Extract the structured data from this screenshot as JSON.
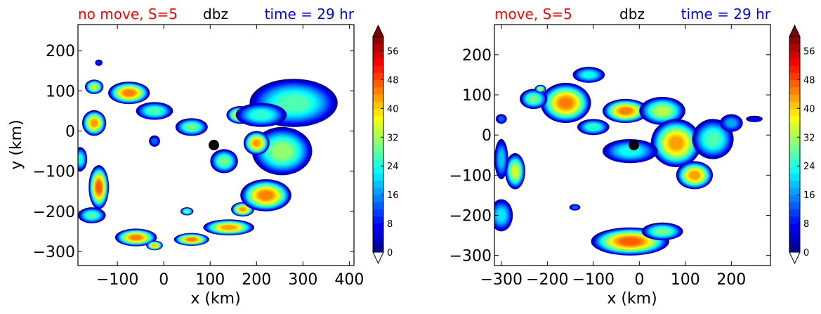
{
  "figure": {
    "panels": [
      {
        "title_left": "no move, S=5",
        "title_mid": "dbz",
        "title_right": "time = 29 hr",
        "xlabel": "x (km)",
        "ylabel": "y (km)"
      },
      {
        "title_left": "move, S=5",
        "title_mid": "dbz",
        "title_right": "time = 29 hr",
        "xlabel": "x (km)",
        "ylabel": ""
      }
    ],
    "colors": {
      "title_left": "#ff0000",
      "title_mid": "#000000",
      "title_right": "#0000ff",
      "center_marker": "#000000"
    }
  },
  "chart_data": [
    {
      "type": "heatmap",
      "title": "no move, S=5   dbz   time = 29 hr",
      "xlabel": "x (km)",
      "ylabel": "y (km)",
      "xlim": [
        -185,
        410
      ],
      "ylim": [
        -335,
        265
      ],
      "xticks": [
        -100,
        0,
        100,
        200,
        300,
        400
      ],
      "xtick_labels": [
        "−100",
        "0",
        "100",
        "200",
        "300",
        "400"
      ],
      "yticks": [
        -300,
        -200,
        -100,
        0,
        100,
        200
      ],
      "ytick_labels": [
        "−300",
        "−200",
        "−100",
        "0",
        "100",
        "200"
      ],
      "center_marker": {
        "x": 108,
        "y": -35
      },
      "colorbar": {
        "label": "dbz",
        "min": 0,
        "max": 60,
        "step": 2,
        "extend": "both",
        "ticks": [
          0,
          8,
          16,
          24,
          32,
          40,
          48,
          56
        ],
        "tick_labels": [
          "0",
          "8",
          "16",
          "24",
          "32",
          "40",
          "48",
          "56"
        ]
      },
      "blobs": [
        {
          "x": -150,
          "y": 20,
          "rx": 26,
          "ry": 32,
          "peak": 44
        },
        {
          "x": -75,
          "y": 95,
          "rx": 45,
          "ry": 28,
          "peak": 46
        },
        {
          "x": -150,
          "y": 110,
          "rx": 20,
          "ry": 18,
          "peak": 36
        },
        {
          "x": -20,
          "y": 50,
          "rx": 40,
          "ry": 22,
          "peak": 28
        },
        {
          "x": 60,
          "y": 10,
          "rx": 35,
          "ry": 22,
          "peak": 30
        },
        {
          "x": -140,
          "y": -140,
          "rx": 22,
          "ry": 55,
          "peak": 48
        },
        {
          "x": -180,
          "y": -70,
          "rx": 15,
          "ry": 30,
          "peak": 24
        },
        {
          "x": -155,
          "y": -210,
          "rx": 30,
          "ry": 20,
          "peak": 28
        },
        {
          "x": -60,
          "y": -265,
          "rx": 45,
          "ry": 22,
          "peak": 46
        },
        {
          "x": -20,
          "y": -285,
          "rx": 18,
          "ry": 12,
          "peak": 42
        },
        {
          "x": 60,
          "y": -270,
          "rx": 38,
          "ry": 16,
          "peak": 46
        },
        {
          "x": 140,
          "y": -240,
          "rx": 55,
          "ry": 20,
          "peak": 44
        },
        {
          "x": 170,
          "y": -195,
          "rx": 25,
          "ry": 18,
          "peak": 44
        },
        {
          "x": 220,
          "y": -160,
          "rx": 55,
          "ry": 40,
          "peak": 46
        },
        {
          "x": 280,
          "y": 70,
          "rx": 95,
          "ry": 60,
          "peak": 28
        },
        {
          "x": 255,
          "y": -50,
          "rx": 65,
          "ry": 60,
          "peak": 32
        },
        {
          "x": 200,
          "y": -30,
          "rx": 28,
          "ry": 30,
          "peak": 44
        },
        {
          "x": 165,
          "y": 40,
          "rx": 30,
          "ry": 22,
          "peak": 42
        },
        {
          "x": 130,
          "y": -75,
          "rx": 30,
          "ry": 30,
          "peak": 30
        },
        {
          "x": 210,
          "y": 40,
          "rx": 55,
          "ry": 30,
          "peak": 26
        },
        {
          "x": 50,
          "y": -200,
          "rx": 14,
          "ry": 10,
          "peak": 30
        },
        {
          "x": -20,
          "y": -25,
          "rx": 12,
          "ry": 14,
          "peak": 14
        },
        {
          "x": -140,
          "y": 170,
          "rx": 8,
          "ry": 8,
          "peak": 10
        }
      ]
    },
    {
      "type": "heatmap",
      "title": "move, S=5   dbz   time = 29 hr",
      "xlabel": "x (km)",
      "ylabel": "",
      "xlim": [
        -315,
        285
      ],
      "ylim": [
        -325,
        275
      ],
      "xticks": [
        -300,
        -200,
        -100,
        0,
        100,
        200
      ],
      "xtick_labels": [
        "−300",
        "−200",
        "−100",
        "0",
        "100",
        "200"
      ],
      "yticks": [
        -300,
        -200,
        -100,
        0,
        100,
        200
      ],
      "ytick_labels": [
        "−300",
        "−200",
        "−100",
        "0",
        "100",
        "200"
      ],
      "center_marker": {
        "x": -12,
        "y": -25
      },
      "colorbar": {
        "label": "dbz",
        "min": 0,
        "max": 60,
        "step": 2,
        "extend": "both",
        "ticks": [
          0,
          8,
          16,
          24,
          32,
          40,
          48,
          56
        ],
        "tick_labels": [
          "0",
          "8",
          "16",
          "24",
          "32",
          "40",
          "48",
          "56"
        ]
      },
      "blobs": [
        {
          "x": -160,
          "y": 80,
          "rx": 55,
          "ry": 50,
          "peak": 46
        },
        {
          "x": -230,
          "y": 90,
          "rx": 30,
          "ry": 25,
          "peak": 30
        },
        {
          "x": -110,
          "y": 150,
          "rx": 35,
          "ry": 20,
          "peak": 24
        },
        {
          "x": -30,
          "y": 60,
          "rx": 50,
          "ry": 30,
          "peak": 46
        },
        {
          "x": 50,
          "y": 60,
          "rx": 50,
          "ry": 35,
          "peak": 34
        },
        {
          "x": 80,
          "y": -20,
          "rx": 55,
          "ry": 60,
          "peak": 44
        },
        {
          "x": 120,
          "y": -100,
          "rx": 40,
          "ry": 35,
          "peak": 44
        },
        {
          "x": 160,
          "y": -10,
          "rx": 45,
          "ry": 50,
          "peak": 28
        },
        {
          "x": 200,
          "y": 30,
          "rx": 25,
          "ry": 22,
          "peak": 18
        },
        {
          "x": -20,
          "y": -40,
          "rx": 60,
          "ry": 30,
          "peak": 24
        },
        {
          "x": -100,
          "y": 20,
          "rx": 35,
          "ry": 20,
          "peak": 26
        },
        {
          "x": -270,
          "y": -90,
          "rx": 22,
          "ry": 45,
          "peak": 36
        },
        {
          "x": -300,
          "y": -60,
          "rx": 15,
          "ry": 50,
          "peak": 20
        },
        {
          "x": -300,
          "y": -200,
          "rx": 25,
          "ry": 40,
          "peak": 22
        },
        {
          "x": -20,
          "y": -265,
          "rx": 85,
          "ry": 35,
          "peak": 48
        },
        {
          "x": 50,
          "y": -240,
          "rx": 45,
          "ry": 22,
          "peak": 30
        },
        {
          "x": -140,
          "y": -180,
          "rx": 12,
          "ry": 8,
          "peak": 14
        },
        {
          "x": -300,
          "y": 40,
          "rx": 12,
          "ry": 12,
          "peak": 14
        },
        {
          "x": 250,
          "y": 40,
          "rx": 18,
          "ry": 8,
          "peak": 8
        },
        {
          "x": -215,
          "y": 115,
          "rx": 12,
          "ry": 10,
          "peak": 34
        }
      ]
    }
  ]
}
